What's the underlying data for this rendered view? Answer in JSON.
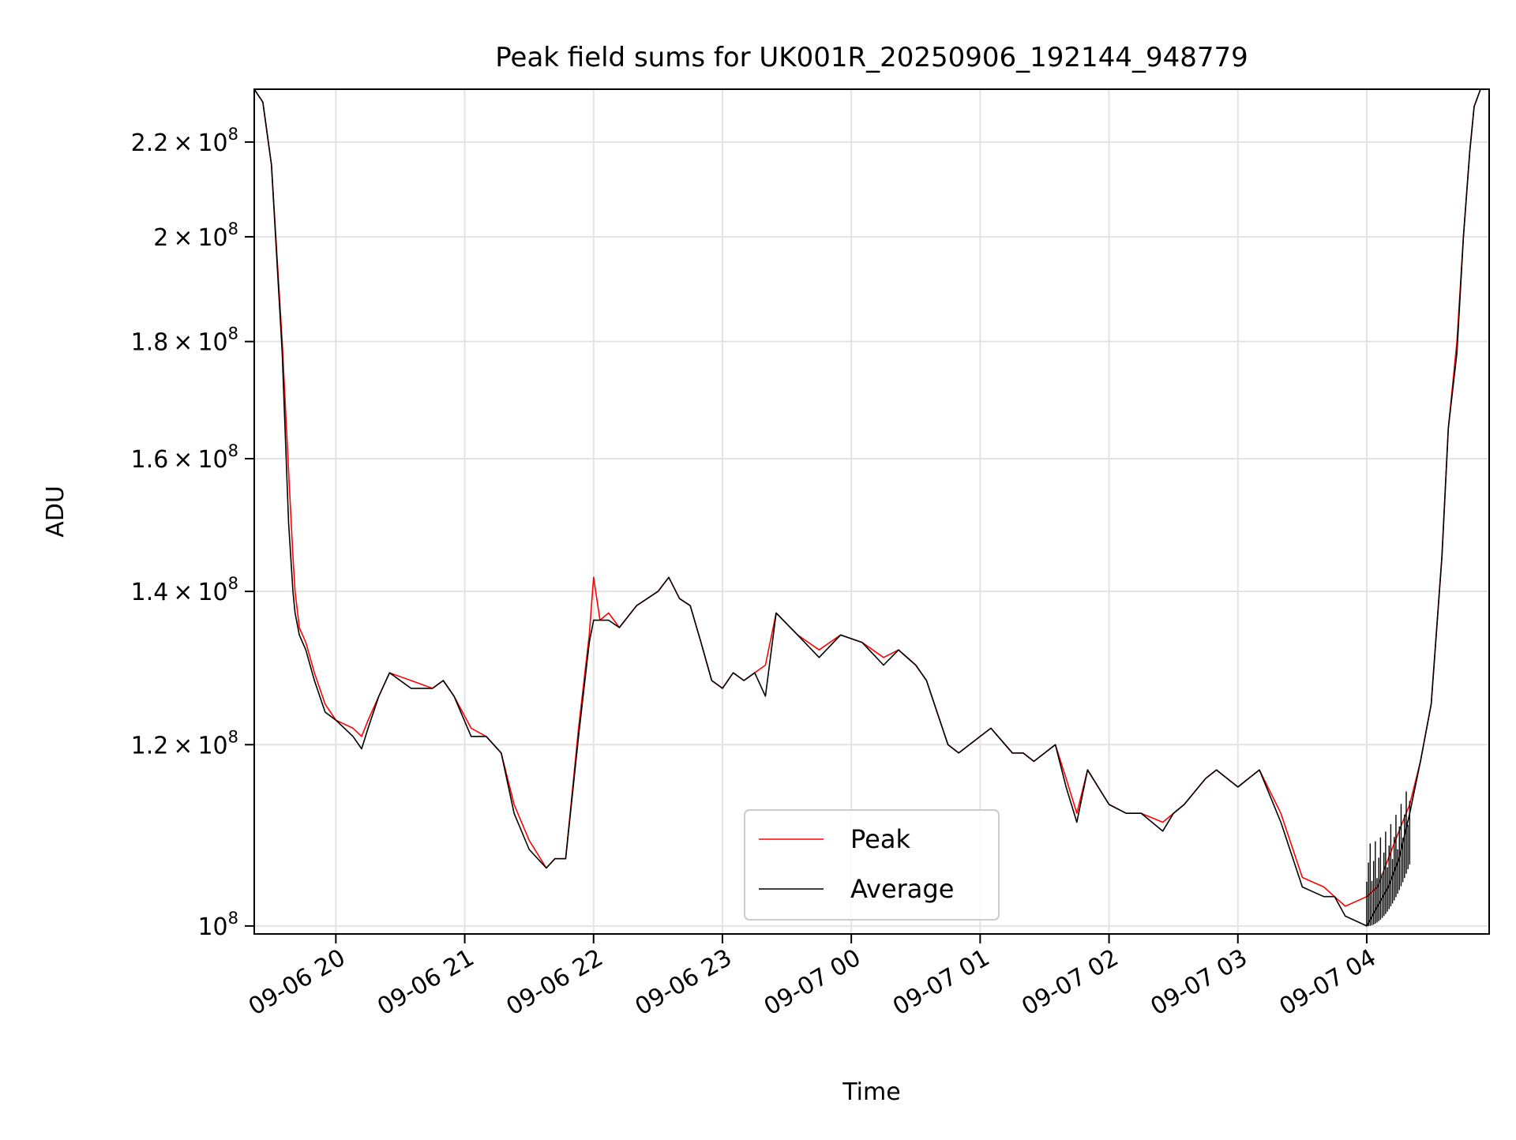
{
  "chart_data": {
    "type": "line",
    "title": "Peak field sums for UK001R_20250906_192144_948779",
    "xlabel": "Time",
    "ylabel": "ADU",
    "yscale": "log",
    "grid": true,
    "legend_position": "lower center",
    "xlim": [
      "2025-09-06 19:22",
      "2025-09-07 04:57"
    ],
    "ylim": [
      99200000,
      232000000
    ],
    "x_ticks": [
      {
        "t": "2025-09-06 20:00",
        "label": "09-06 20"
      },
      {
        "t": "2025-09-06 21:00",
        "label": "09-06 21"
      },
      {
        "t": "2025-09-06 22:00",
        "label": "09-06 22"
      },
      {
        "t": "2025-09-06 23:00",
        "label": "09-06 23"
      },
      {
        "t": "2025-09-07 00:00",
        "label": "09-07 00"
      },
      {
        "t": "2025-09-07 01:00",
        "label": "09-07 01"
      },
      {
        "t": "2025-09-07 02:00",
        "label": "09-07 02"
      },
      {
        "t": "2025-09-07 03:00",
        "label": "09-07 03"
      },
      {
        "t": "2025-09-07 04:00",
        "label": "09-07 04"
      }
    ],
    "y_ticks": [
      {
        "value": 100000000,
        "mantissa": "",
        "exp": "8"
      },
      {
        "value": 120000000,
        "mantissa": "1.2",
        "exp": "8"
      },
      {
        "value": 140000000,
        "mantissa": "1.4",
        "exp": "8"
      },
      {
        "value": 160000000,
        "mantissa": "1.6",
        "exp": "8"
      },
      {
        "value": 180000000,
        "mantissa": "1.8",
        "exp": "8"
      },
      {
        "value": 200000000,
        "mantissa": "2",
        "exp": "8"
      },
      {
        "value": 220000000,
        "mantissa": "2.2",
        "exp": "8"
      }
    ],
    "series": [
      {
        "name": "Peak",
        "color": "#ff0000",
        "x": [
          "2025-09-06 19:22",
          "2025-09-06 19:26",
          "2025-09-06 19:30",
          "2025-09-06 19:35",
          "2025-09-06 19:38",
          "2025-09-06 19:40",
          "2025-09-06 19:41",
          "2025-09-06 19:43",
          "2025-09-06 19:46",
          "2025-09-06 19:50",
          "2025-09-06 19:55",
          "2025-09-06 20:00",
          "2025-09-06 20:08",
          "2025-09-06 20:12",
          "2025-09-06 20:15",
          "2025-09-06 20:20",
          "2025-09-06 20:25",
          "2025-09-06 20:35",
          "2025-09-06 20:45",
          "2025-09-06 20:50",
          "2025-09-06 20:55",
          "2025-09-06 21:03",
          "2025-09-06 21:10",
          "2025-09-06 21:17",
          "2025-09-06 21:23",
          "2025-09-06 21:30",
          "2025-09-06 21:38",
          "2025-09-06 21:42",
          "2025-09-06 21:47",
          "2025-09-06 21:53",
          "2025-09-06 21:58",
          "2025-09-06 22:00",
          "2025-09-06 22:03",
          "2025-09-06 22:07",
          "2025-09-06 22:12",
          "2025-09-06 22:20",
          "2025-09-06 22:30",
          "2025-09-06 22:35",
          "2025-09-06 22:40",
          "2025-09-06 22:45",
          "2025-09-06 22:50",
          "2025-09-06 22:55",
          "2025-09-06 23:00",
          "2025-09-06 23:05",
          "2025-09-06 23:10",
          "2025-09-06 23:15",
          "2025-09-06 23:20",
          "2025-09-06 23:25",
          "2025-09-06 23:35",
          "2025-09-06 23:45",
          "2025-09-06 23:55",
          "2025-09-07 00:05",
          "2025-09-07 00:15",
          "2025-09-07 00:22",
          "2025-09-07 00:30",
          "2025-09-07 00:35",
          "2025-09-07 00:45",
          "2025-09-07 00:50",
          "2025-09-07 01:00",
          "2025-09-07 01:05",
          "2025-09-07 01:15",
          "2025-09-07 01:20",
          "2025-09-07 01:25",
          "2025-09-07 01:35",
          "2025-09-07 01:40",
          "2025-09-07 01:45",
          "2025-09-07 01:50",
          "2025-09-07 02:00",
          "2025-09-07 02:08",
          "2025-09-07 02:15",
          "2025-09-07 02:25",
          "2025-09-07 02:30",
          "2025-09-07 02:35",
          "2025-09-07 02:45",
          "2025-09-07 02:50",
          "2025-09-07 03:00",
          "2025-09-07 03:05",
          "2025-09-07 03:10",
          "2025-09-07 03:20",
          "2025-09-07 03:30",
          "2025-09-07 03:40",
          "2025-09-07 03:45",
          "2025-09-07 03:50",
          "2025-09-07 04:00",
          "2025-09-07 04:05",
          "2025-09-07 04:10",
          "2025-09-07 04:15",
          "2025-09-07 04:20",
          "2025-09-07 04:25",
          "2025-09-07 04:30",
          "2025-09-07 04:35",
          "2025-09-07 04:38",
          "2025-09-07 04:42",
          "2025-09-07 04:45",
          "2025-09-07 04:48",
          "2025-09-07 04:50",
          "2025-09-07 04:53",
          "2025-09-07 04:57"
        ],
        "y": [
          232000000,
          229000000,
          215000000,
          180000000,
          158000000,
          145000000,
          140000000,
          135000000,
          133000000,
          129000000,
          125000000,
          123000000,
          122000000,
          121000000,
          123000000,
          126000000,
          129000000,
          128000000,
          127000000,
          128000000,
          126000000,
          122000000,
          121000000,
          119000000,
          113000000,
          109000000,
          106000000,
          107000000,
          107000000,
          122000000,
          134000000,
          142000000,
          136000000,
          137000000,
          135000000,
          138000000,
          140000000,
          142000000,
          139000000,
          138000000,
          133000000,
          128000000,
          127000000,
          129000000,
          128000000,
          129000000,
          130000000,
          137000000,
          134000000,
          132000000,
          134000000,
          133000000,
          131000000,
          132000000,
          130000000,
          128000000,
          120000000,
          119000000,
          121000000,
          122000000,
          119000000,
          119000000,
          118000000,
          120000000,
          116000000,
          112000000,
          117000000,
          113000000,
          112000000,
          112000000,
          111000000,
          112000000,
          113000000,
          116000000,
          117000000,
          115000000,
          116000000,
          117000000,
          112000000,
          105000000,
          104000000,
          103000000,
          102000000,
          103000000,
          104000000,
          107000000,
          110000000,
          113000000,
          118000000,
          125000000,
          145000000,
          165000000,
          180000000,
          200000000,
          218000000,
          228000000,
          232000000,
          232000000
        ]
      },
      {
        "name": "Average",
        "color": "#000000",
        "x": [
          "2025-09-06 19:22",
          "2025-09-06 19:26",
          "2025-09-06 19:30",
          "2025-09-06 19:35",
          "2025-09-06 19:38",
          "2025-09-06 19:40",
          "2025-09-06 19:41",
          "2025-09-06 19:43",
          "2025-09-06 19:46",
          "2025-09-06 19:50",
          "2025-09-06 19:55",
          "2025-09-06 20:00",
          "2025-09-06 20:08",
          "2025-09-06 20:12",
          "2025-09-06 20:15",
          "2025-09-06 20:20",
          "2025-09-06 20:25",
          "2025-09-06 20:35",
          "2025-09-06 20:45",
          "2025-09-06 20:50",
          "2025-09-06 20:55",
          "2025-09-06 21:03",
          "2025-09-06 21:10",
          "2025-09-06 21:17",
          "2025-09-06 21:23",
          "2025-09-06 21:30",
          "2025-09-06 21:38",
          "2025-09-06 21:42",
          "2025-09-06 21:47",
          "2025-09-06 21:53",
          "2025-09-06 21:58",
          "2025-09-06 22:00",
          "2025-09-06 22:03",
          "2025-09-06 22:07",
          "2025-09-06 22:12",
          "2025-09-06 22:20",
          "2025-09-06 22:30",
          "2025-09-06 22:35",
          "2025-09-06 22:40",
          "2025-09-06 22:45",
          "2025-09-06 22:50",
          "2025-09-06 22:55",
          "2025-09-06 23:00",
          "2025-09-06 23:05",
          "2025-09-06 23:10",
          "2025-09-06 23:15",
          "2025-09-06 23:20",
          "2025-09-06 23:25",
          "2025-09-06 23:35",
          "2025-09-06 23:45",
          "2025-09-06 23:55",
          "2025-09-07 00:05",
          "2025-09-07 00:15",
          "2025-09-07 00:22",
          "2025-09-07 00:30",
          "2025-09-07 00:35",
          "2025-09-07 00:45",
          "2025-09-07 00:50",
          "2025-09-07 01:00",
          "2025-09-07 01:05",
          "2025-09-07 01:15",
          "2025-09-07 01:20",
          "2025-09-07 01:25",
          "2025-09-07 01:35",
          "2025-09-07 01:40",
          "2025-09-07 01:45",
          "2025-09-07 01:50",
          "2025-09-07 02:00",
          "2025-09-07 02:08",
          "2025-09-07 02:15",
          "2025-09-07 02:25",
          "2025-09-07 02:30",
          "2025-09-07 02:35",
          "2025-09-07 02:45",
          "2025-09-07 02:50",
          "2025-09-07 03:00",
          "2025-09-07 03:05",
          "2025-09-07 03:10",
          "2025-09-07 03:20",
          "2025-09-07 03:30",
          "2025-09-07 03:40",
          "2025-09-07 03:45",
          "2025-09-07 03:50",
          "2025-09-07 04:00",
          "2025-09-07 04:05",
          "2025-09-07 04:10",
          "2025-09-07 04:15",
          "2025-09-07 04:20",
          "2025-09-07 04:25",
          "2025-09-07 04:30",
          "2025-09-07 04:35",
          "2025-09-07 04:38",
          "2025-09-07 04:42",
          "2025-09-07 04:45",
          "2025-09-07 04:48",
          "2025-09-07 04:50",
          "2025-09-07 04:53",
          "2025-09-07 04:57"
        ],
        "y": [
          232000000,
          229000000,
          215000000,
          178000000,
          150000000,
          140000000,
          137000000,
          134000000,
          132000000,
          128000000,
          124000000,
          123000000,
          121000000,
          119500000,
          122000000,
          126000000,
          129000000,
          127000000,
          127000000,
          128000000,
          126000000,
          121000000,
          121000000,
          119000000,
          112000000,
          108000000,
          106000000,
          107000000,
          107000000,
          121000000,
          133000000,
          136000000,
          136000000,
          136000000,
          135000000,
          138000000,
          140000000,
          142000000,
          139000000,
          138000000,
          133000000,
          128000000,
          127000000,
          129000000,
          128000000,
          129000000,
          126000000,
          137000000,
          134000000,
          131000000,
          134000000,
          133000000,
          130000000,
          132000000,
          130000000,
          128000000,
          120000000,
          119000000,
          121000000,
          122000000,
          119000000,
          119000000,
          118000000,
          120000000,
          115000000,
          111000000,
          117000000,
          113000000,
          112000000,
          112000000,
          110000000,
          112000000,
          113000000,
          116000000,
          117000000,
          115000000,
          116000000,
          117000000,
          111000000,
          104000000,
          103000000,
          103000000,
          101000000,
          100000000,
          102000000,
          104000000,
          107000000,
          112000000,
          118000000,
          125000000,
          145000000,
          165000000,
          178000000,
          200000000,
          218000000,
          228000000,
          232000000,
          232000000
        ]
      }
    ],
    "ticks_dense_oscillation": true
  }
}
